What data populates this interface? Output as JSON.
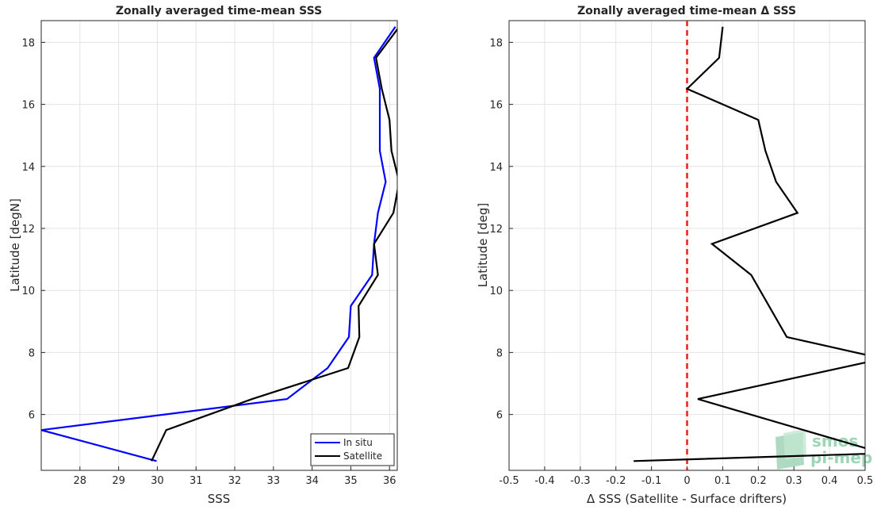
{
  "chart_data": [
    {
      "type": "line",
      "title": "Zonally averaged time-mean SSS",
      "xlabel": "SSS",
      "ylabel": "Latitude [degN]",
      "xlim": [
        27.0,
        36.2
      ],
      "ylim": [
        4.2,
        18.7
      ],
      "xticks": [
        28,
        29,
        30,
        31,
        32,
        33,
        34,
        35,
        36
      ],
      "yticks": [
        6,
        8,
        10,
        12,
        14,
        16,
        18
      ],
      "grid": true,
      "legend_position": "bottom-right",
      "series": [
        {
          "name": "In situ",
          "color": "#0000ff",
          "x": [
            29.98,
            27.0,
            33.35,
            34.4,
            34.95,
            35.0,
            35.55,
            35.6,
            35.7,
            35.9,
            35.75,
            35.75,
            35.75,
            35.6,
            36.15
          ],
          "y": [
            4.5,
            5.5,
            6.5,
            7.5,
            8.5,
            9.5,
            10.5,
            11.5,
            12.5,
            13.5,
            14.5,
            15.5,
            16.5,
            17.5,
            18.5
          ]
        },
        {
          "name": "Satellite",
          "color": "#000000",
          "x": [
            29.85,
            30.23,
            32.45,
            34.93,
            35.22,
            35.2,
            35.7,
            35.6,
            36.1,
            36.25,
            36.05,
            36.0,
            35.8,
            35.65,
            36.25
          ],
          "y": [
            4.5,
            5.5,
            6.5,
            7.5,
            8.5,
            9.5,
            10.5,
            11.5,
            12.5,
            13.5,
            14.5,
            15.5,
            16.5,
            17.5,
            18.5
          ]
        }
      ]
    },
    {
      "type": "line",
      "title": "Zonally averaged time-mean Δ SSS",
      "xlabel": "Δ SSS (Satellite - Surface drifters)",
      "ylabel": "Latitude [deg]",
      "xlim": [
        -0.5,
        0.5
      ],
      "ylim": [
        4.2,
        18.7
      ],
      "xticks": [
        -0.5,
        -0.4,
        -0.3,
        -0.2,
        -0.1,
        0,
        0.1,
        0.2,
        0.3,
        0.4,
        0.5
      ],
      "xticklabels": [
        "-0.5",
        "-0.4",
        "-0.3",
        "-0.2",
        "-0.1",
        "0",
        "0.1",
        "0.2",
        "0.3",
        "0.4",
        "0.5"
      ],
      "yticks": [
        6,
        8,
        10,
        12,
        14,
        16,
        18
      ],
      "grid": true,
      "reference_line": {
        "x": 0,
        "color": "#e8211c",
        "style": "dashed"
      },
      "series": [
        {
          "color": "#000000",
          "x": [
            -0.15,
            0.55,
            0.03,
            0.55,
            0.28,
            0.23,
            0.18,
            0.07,
            0.31,
            0.25,
            0.22,
            0.2,
            0.0,
            0.09,
            0.1
          ],
          "y": [
            4.5,
            4.75,
            6.5,
            7.8,
            8.5,
            9.5,
            10.5,
            11.5,
            12.5,
            13.5,
            14.5,
            15.5,
            16.5,
            17.5,
            18.5
          ]
        }
      ]
    }
  ],
  "logo": {
    "text_line1": "smos",
    "text_line2": "pi-mep",
    "color": "#9fd4b6"
  }
}
